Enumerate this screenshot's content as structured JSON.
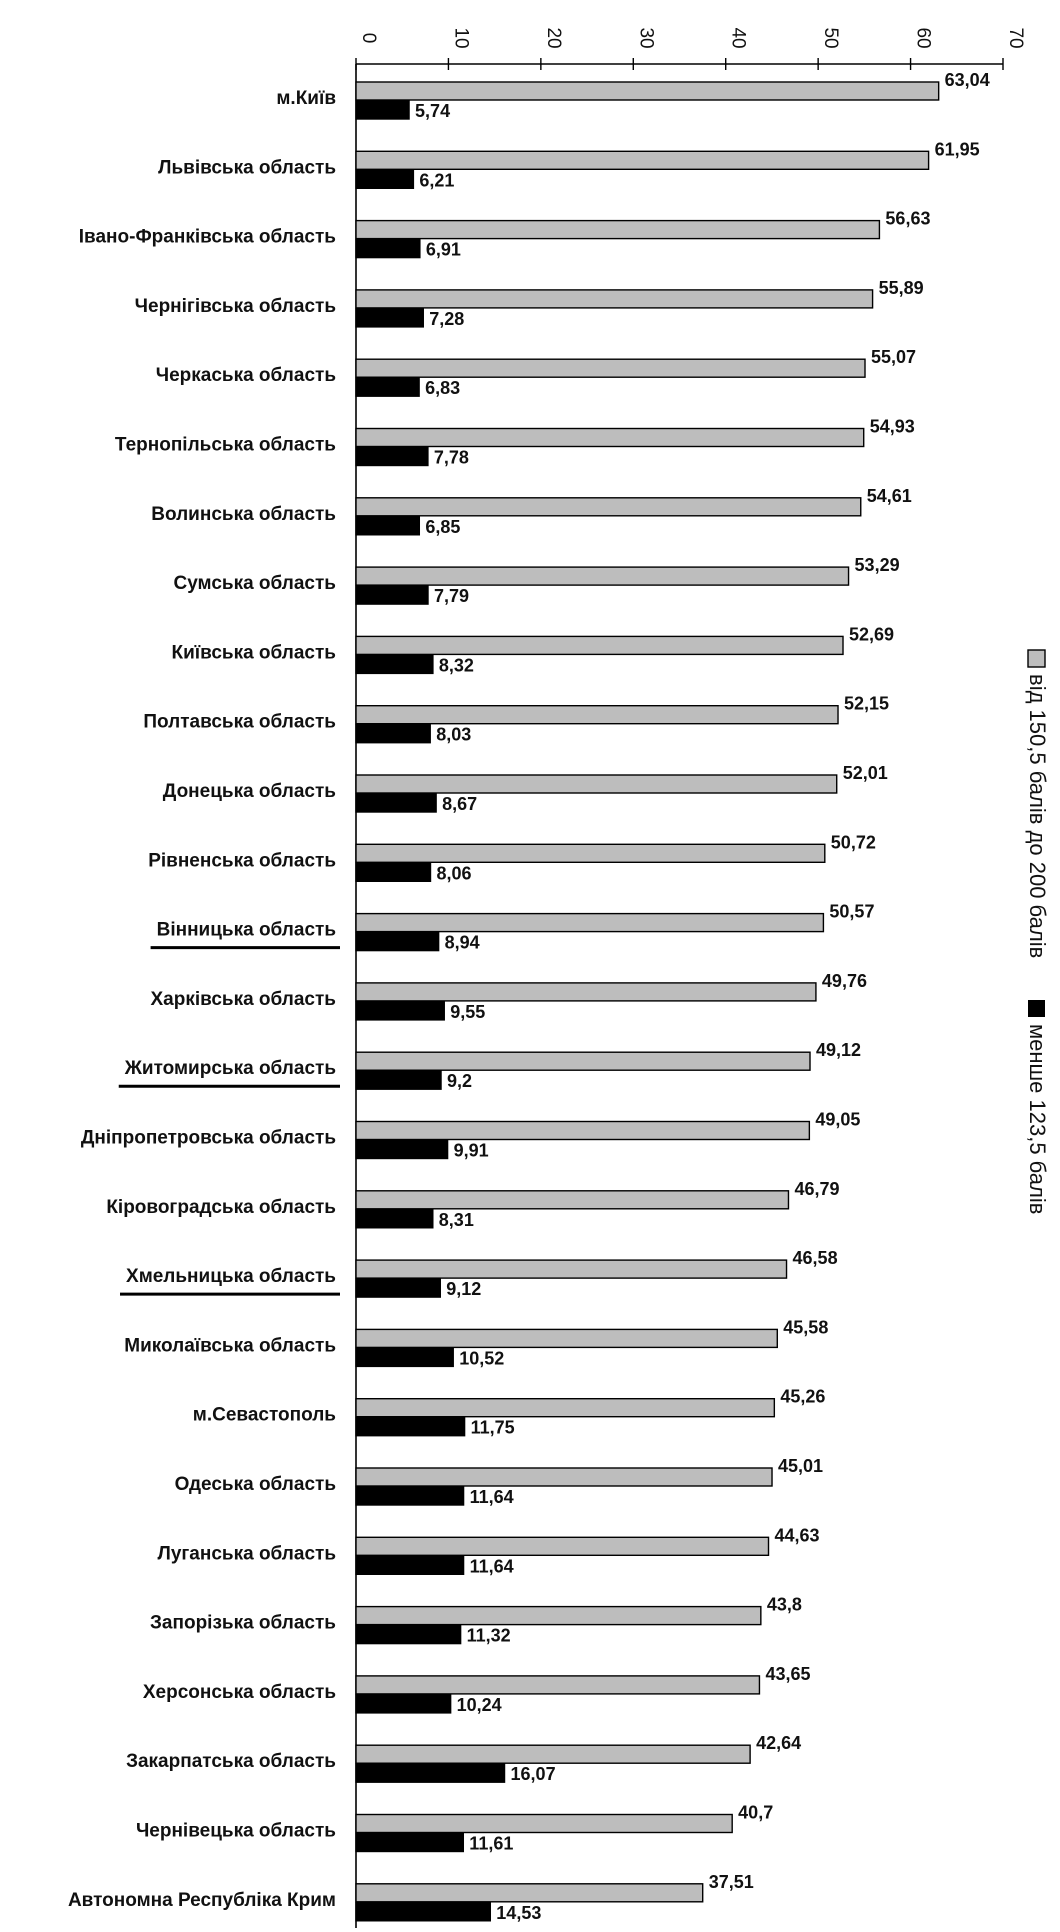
{
  "chart_data": {
    "type": "bar",
    "orientation": "horizontal",
    "categories": [
      "м.Київ",
      "Львівська область",
      "Івано-Франківська область",
      "Чернігівська область",
      "Черкаська область",
      "Тернопільська область",
      "Волинська область",
      "Сумська область",
      "Київська область",
      "Полтавська область",
      "Донецька область",
      "Рівненська область",
      "Вінницька область",
      "Харківська область",
      "Житомирська область",
      "Дніпропетровська область",
      "Кіровоградська область",
      "Хмельницька область",
      "Миколаївська область",
      "м.Севастополь",
      "Одеська область",
      "Луганська область",
      "Запорізька область",
      "Херсонська область",
      "Закарпатська область",
      "Чернівецька область",
      "Автономна Республіка Крим"
    ],
    "underlined_categories": [
      "Вінницька область",
      "Житомирська область",
      "Хмельницька область"
    ],
    "series": [
      {
        "name": "від 150,5 балів до 200 балів",
        "color": "#bdbdbd",
        "values": [
          63.04,
          61.95,
          56.63,
          55.89,
          55.07,
          54.93,
          54.61,
          53.29,
          52.69,
          52.15,
          52.01,
          50.72,
          50.57,
          49.76,
          49.12,
          49.05,
          46.79,
          46.58,
          45.58,
          45.26,
          45.01,
          44.63,
          43.8,
          43.65,
          42.64,
          40.7,
          37.51
        ],
        "labels": [
          "63,04",
          "61,95",
          "56,63",
          "55,89",
          "55,07",
          "54,93",
          "54,61",
          "53,29",
          "52,69",
          "52,15",
          "52,01",
          "50,72",
          "50,57",
          "49,76",
          "49,12",
          "49,05",
          "46,79",
          "46,58",
          "45,58",
          "45,26",
          "45,01",
          "44,63",
          "43,8",
          "43,65",
          "42,64",
          "40,7",
          "37,51"
        ]
      },
      {
        "name": "менше 123,5 балів",
        "color": "#000000",
        "values": [
          5.74,
          6.21,
          6.91,
          7.28,
          6.83,
          7.78,
          6.85,
          7.79,
          8.32,
          8.03,
          8.67,
          8.06,
          8.94,
          9.55,
          9.2,
          9.91,
          8.31,
          9.12,
          10.52,
          11.75,
          11.64,
          11.64,
          11.32,
          10.24,
          16.07,
          11.61,
          14.53
        ],
        "labels": [
          "5,74",
          "6,21",
          "6,91",
          "7,28",
          "6,83",
          "7,78",
          "6,85",
          "7,79",
          "8,32",
          "8,03",
          "8,67",
          "8,06",
          "8,94",
          "9,55",
          "9,2",
          "9,91",
          "8,31",
          "9,12",
          "10,52",
          "11,75",
          "11,64",
          "11,64",
          "11,32",
          "10,24",
          "16,07",
          "11,61",
          "14,53"
        ]
      }
    ],
    "xlim": [
      0,
      70
    ],
    "x_ticks": [
      "0",
      "10",
      "20",
      "30",
      "40",
      "50",
      "60",
      "70"
    ],
    "x_tick_values": [
      0,
      10,
      20,
      30,
      40,
      50,
      60,
      70
    ],
    "tick_label_rotation": "rotated 90 degrees clockwise",
    "axis_position": "top",
    "grid": false,
    "legend_placement": "right, vertical text",
    "title": "",
    "xlabel": "",
    "ylabel": ""
  }
}
